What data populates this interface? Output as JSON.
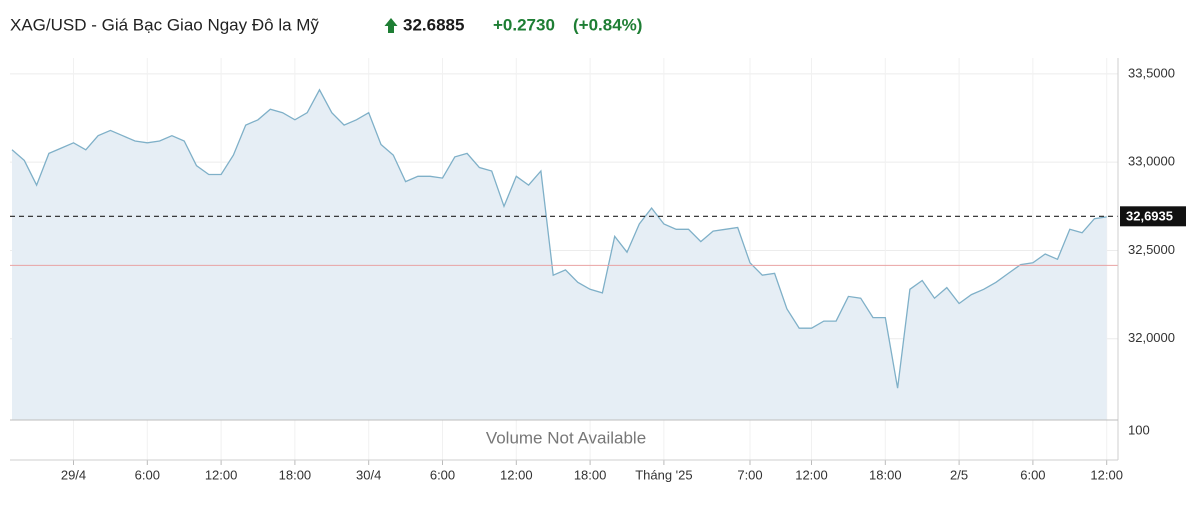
{
  "chart_data": {
    "type": "area",
    "title": "XAG/USD - Giá Bạc Giao Ngay Đô la Mỹ",
    "price": "32.6885",
    "change": "+0.2730",
    "change_percent": "(+0.84%)",
    "categories": [
      null,
      null,
      null,
      null,
      null,
      "29/4",
      null,
      null,
      null,
      null,
      null,
      "6:00",
      null,
      null,
      null,
      null,
      null,
      "12:00",
      null,
      null,
      null,
      null,
      null,
      "18:00",
      null,
      null,
      null,
      null,
      null,
      "30/4",
      null,
      null,
      null,
      null,
      null,
      "6:00",
      null,
      null,
      null,
      null,
      null,
      "12:00",
      null,
      null,
      null,
      null,
      null,
      "18:00",
      null,
      null,
      null,
      null,
      null,
      "Tháng '25",
      null,
      null,
      null,
      null,
      null,
      null,
      "7:00",
      null,
      null,
      null,
      null,
      "12:00",
      null,
      null,
      null,
      null,
      null,
      "18:00",
      null,
      null,
      null,
      null,
      null,
      "2/5",
      null,
      null,
      null,
      null,
      null,
      "6:00",
      null,
      null,
      null,
      null,
      null,
      "12:00"
    ],
    "values": [
      33.07,
      33.01,
      32.87,
      33.05,
      33.08,
      33.11,
      33.07,
      33.15,
      33.18,
      33.15,
      33.12,
      33.11,
      33.12,
      33.15,
      33.12,
      32.98,
      32.93,
      32.93,
      33.04,
      33.21,
      33.24,
      33.3,
      33.28,
      33.24,
      33.28,
      33.41,
      33.28,
      33.21,
      33.24,
      33.28,
      33.1,
      33.04,
      32.89,
      32.92,
      32.92,
      32.91,
      33.03,
      33.05,
      32.97,
      32.95,
      32.75,
      32.92,
      32.87,
      32.95,
      32.36,
      32.39,
      32.32,
      32.28,
      32.26,
      32.58,
      32.49,
      32.65,
      32.74,
      32.65,
      32.62,
      32.62,
      32.55,
      32.61,
      32.62,
      32.63,
      32.43,
      32.36,
      32.37,
      32.17,
      32.06,
      32.06,
      32.1,
      32.1,
      32.24,
      32.23,
      32.12,
      32.12,
      31.72,
      32.28,
      32.33,
      32.23,
      32.29,
      32.2,
      32.25,
      32.28,
      32.32,
      32.37,
      32.42,
      32.43,
      32.48,
      32.45,
      32.62,
      32.6,
      32.68,
      32.69
    ],
    "color": "#7fb0c8",
    "fill_color": "#e6eef5",
    "ylim": [
      31.54,
      33.59
    ],
    "yticks": [
      {
        "value": 32.0,
        "label": "32,0000"
      },
      {
        "value": 32.5,
        "label": "32,5000"
      },
      {
        "value": 33.0,
        "label": "33,0000"
      },
      {
        "value": 33.5,
        "label": "33,5000"
      }
    ],
    "grid": true,
    "last_price": {
      "value": 32.6935,
      "label": "32,6935"
    },
    "previous_close": 32.4155,
    "previous_close_color": "#e9a3a3",
    "volume_text": "Volume Not Available",
    "volume_tick": 100
  }
}
